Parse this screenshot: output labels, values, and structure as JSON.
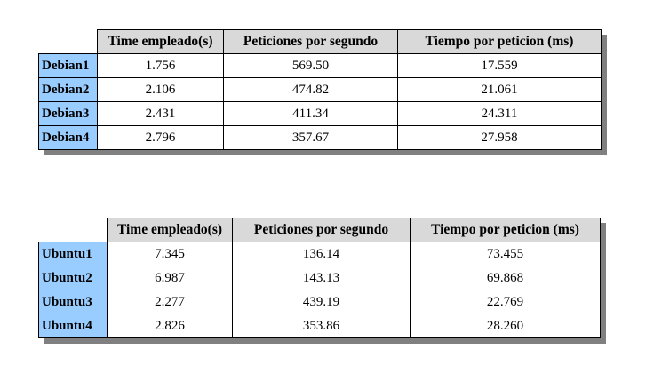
{
  "tables": [
    {
      "headers": [
        "Time empleado(s)",
        "Peticiones por segundo",
        "Tiempo por peticion (ms)"
      ],
      "rows": [
        {
          "label": "Debian1",
          "time": "1.756",
          "rps": "569.50",
          "tpp": "17.559"
        },
        {
          "label": "Debian2",
          "time": "2.106",
          "rps": "474.82",
          "tpp": "21.061"
        },
        {
          "label": "Debian3",
          "time": "2.431",
          "rps": "411.34",
          "tpp": "24.311"
        },
        {
          "label": "Debian4",
          "time": "2.796",
          "rps": "357.67",
          "tpp": "27.958"
        }
      ]
    },
    {
      "headers": [
        "Time empleado(s)",
        "Peticiones por segundo",
        "Tiempo por peticion (ms)"
      ],
      "rows": [
        {
          "label": "Ubuntu1",
          "time": "7.345",
          "rps": "136.14",
          "tpp": "73.455"
        },
        {
          "label": "Ubuntu2",
          "time": "6.987",
          "rps": "143.13",
          "tpp": "69.868"
        },
        {
          "label": "Ubuntu3",
          "time": "2.277",
          "rps": "439.19",
          "tpp": "22.769"
        },
        {
          "label": "Ubuntu4",
          "time": "2.826",
          "rps": "353.86",
          "tpp": "28.260"
        }
      ]
    }
  ],
  "colors": {
    "row_header": "#99ccff",
    "col_header": "#d9d9d9",
    "shadow": "#808080"
  }
}
